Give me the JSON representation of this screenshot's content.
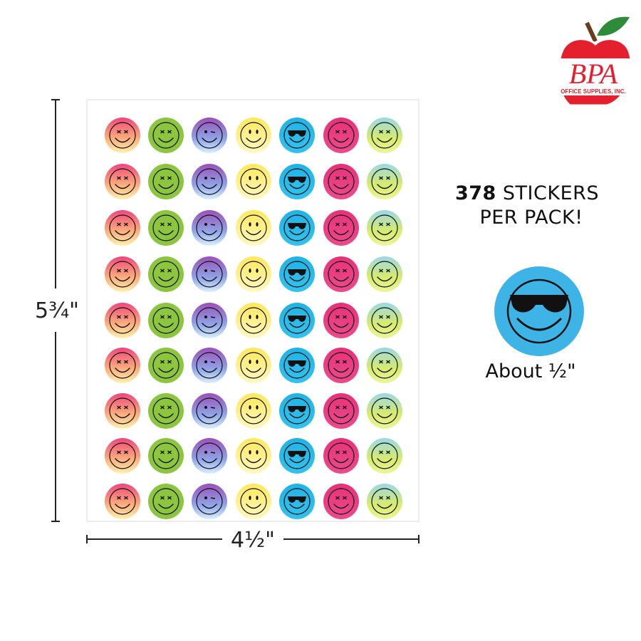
{
  "logo": {
    "name": "BPA",
    "tagline": "OFFICE SUPPLIES, INC."
  },
  "headline": {
    "count": "378",
    "rest": "STICKERS",
    "line2": "PER PACK!"
  },
  "sample_caption": "About ½\"",
  "dimensions": {
    "height": "5¾\"",
    "width": "4½\""
  }
}
